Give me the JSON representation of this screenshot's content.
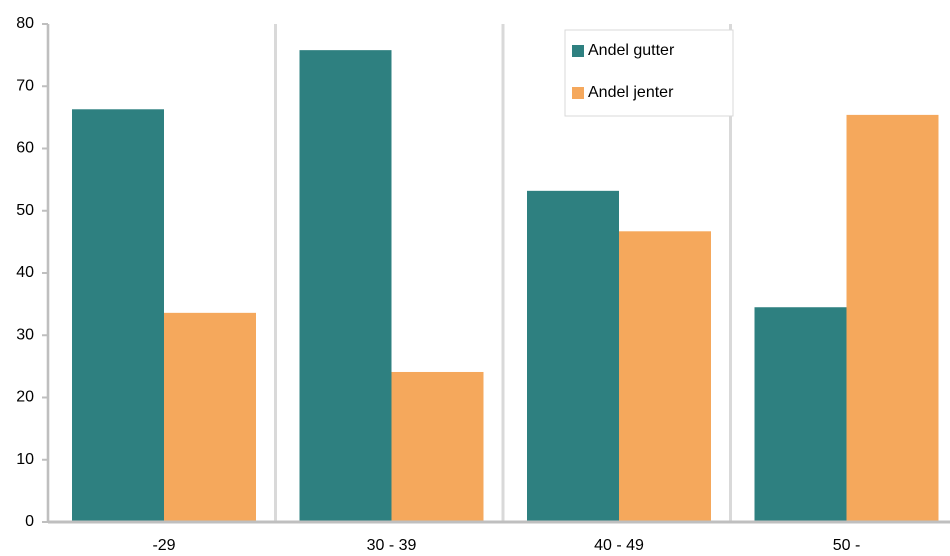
{
  "chart_data": {
    "type": "bar",
    "categories": [
      "-29",
      "30 - 39",
      "40 - 49",
      "50 -"
    ],
    "series": [
      {
        "name": "Andel gutter",
        "color": "#2e8080",
        "values": [
          66.3,
          75.8,
          53.2,
          34.5
        ]
      },
      {
        "name": "Andel jenter",
        "color": "#f5a85c",
        "values": [
          33.6,
          24.1,
          46.7,
          65.4
        ]
      }
    ],
    "ylim": [
      0,
      80
    ],
    "yticks": [
      0,
      10,
      20,
      30,
      40,
      50,
      60,
      70,
      80
    ],
    "grid": false
  }
}
